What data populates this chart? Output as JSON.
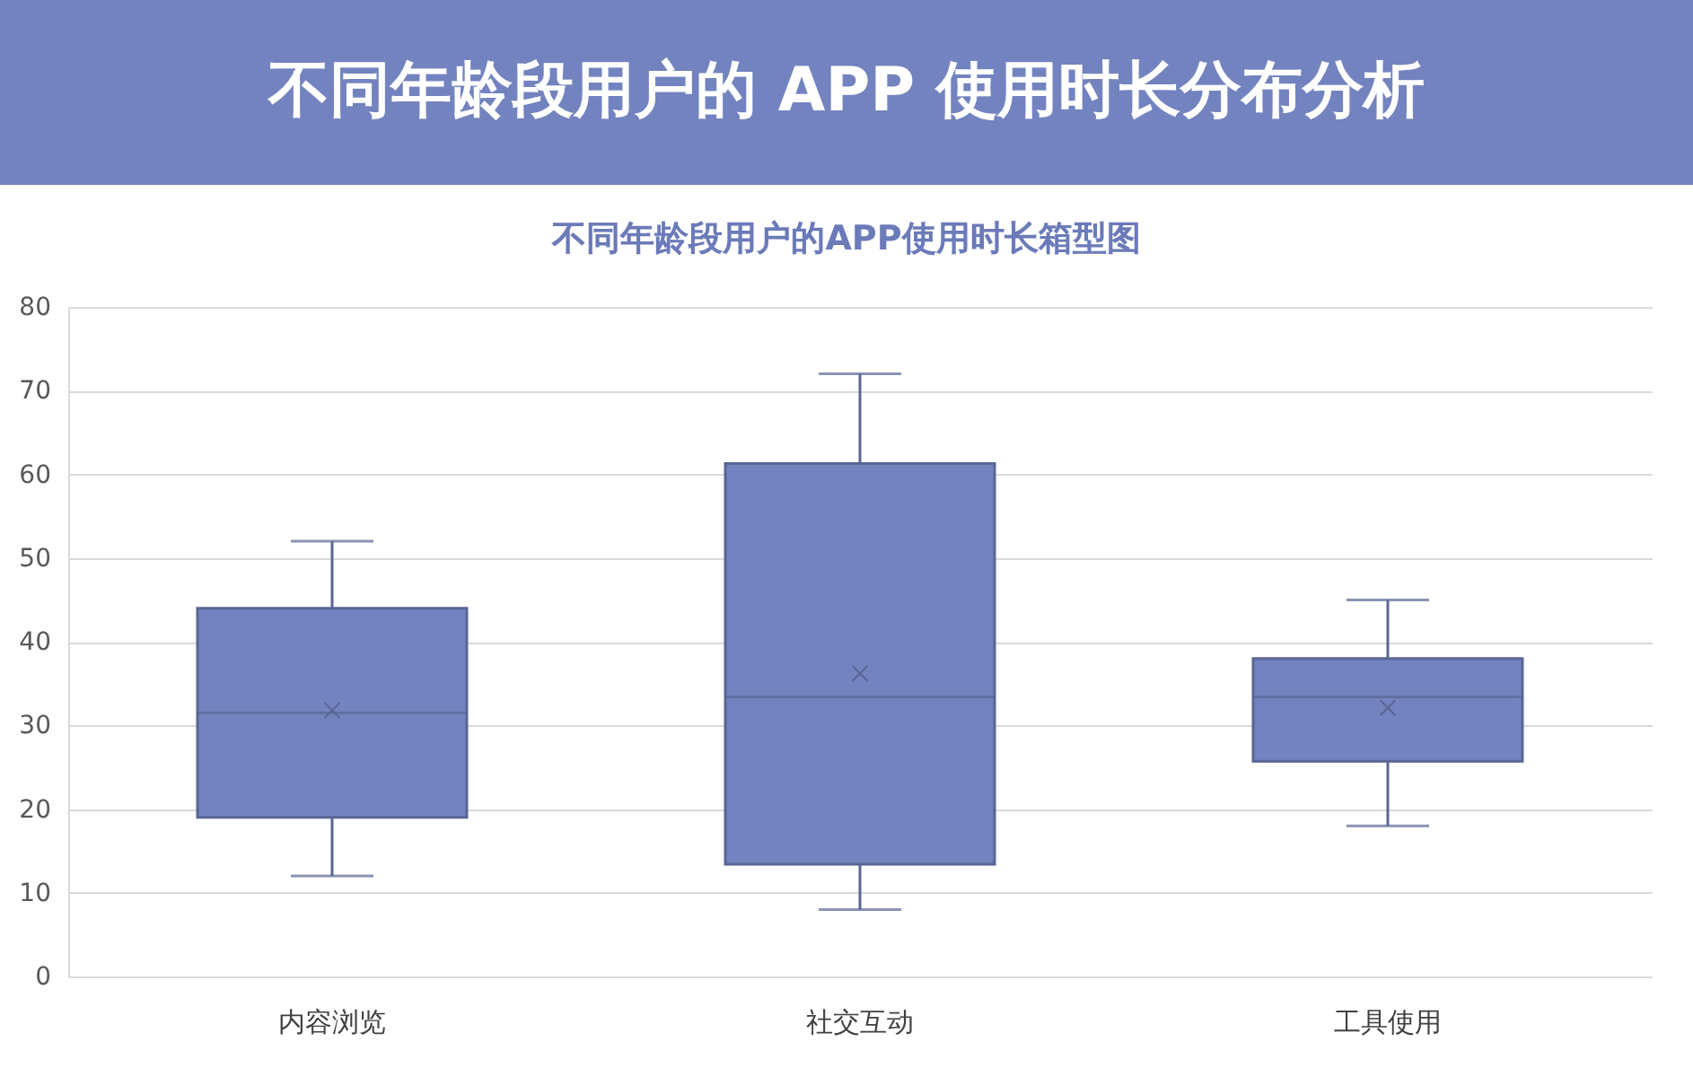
{
  "chart_data": {
    "type": "box",
    "title": "不同年龄段用户的 APP 使用时长分布分析",
    "subtitle": "不同年龄段用户的APP使用时长箱型图",
    "categories": [
      "内容浏览",
      "社交互动",
      "工具使用"
    ],
    "series": [
      {
        "color": "#7383bf",
        "boxes": [
          {
            "low": 12,
            "q1": 19,
            "median": 31.5,
            "q3": 44,
            "high": 52,
            "mean": 31.8
          },
          {
            "low": 8,
            "q1": 13.4,
            "median": 33.4,
            "q3": 61.3,
            "high": 72,
            "mean": 36.2
          },
          {
            "low": 18,
            "q1": 25.7,
            "median": 33.4,
            "q3": 38,
            "high": 45,
            "mean": 32.1
          }
        ]
      }
    ],
    "ylim": [
      0,
      80
    ],
    "yticks": [
      0,
      10,
      20,
      30,
      40,
      50,
      60,
      70,
      80
    ],
    "grid": "y",
    "marker": "cross"
  }
}
